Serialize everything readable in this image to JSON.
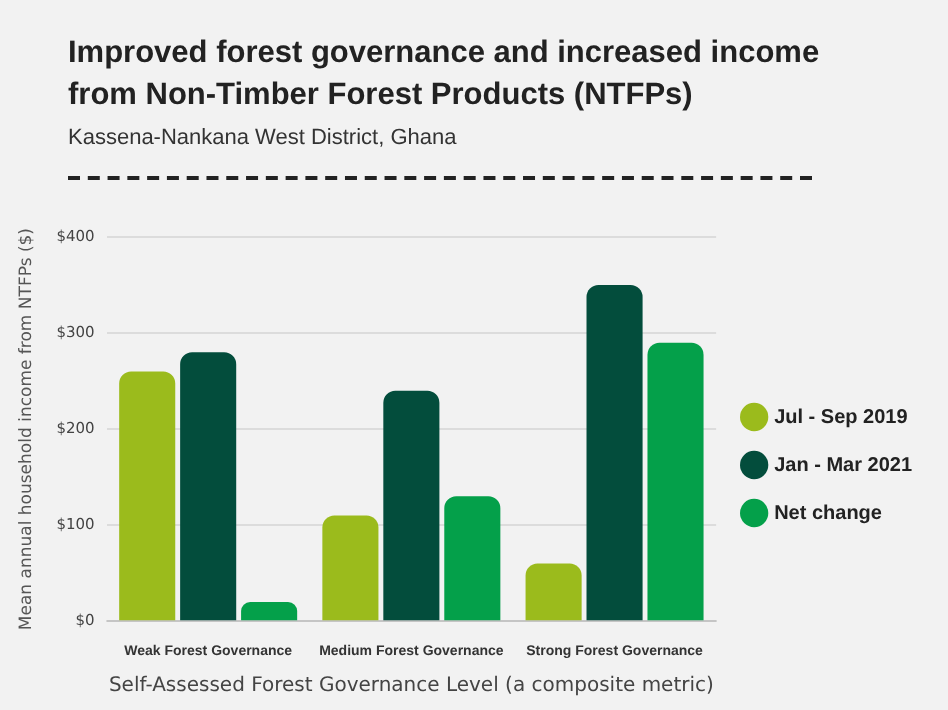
{
  "chart_data": {
    "type": "bar",
    "title": "Improved forest governance and increased income from Non-Timber Forest Products (NTFPs)",
    "subtitle": "Kassena-Nankana West District, Ghana",
    "xlabel": "Self-Assessed Forest Governance Level (a composite metric)",
    "ylabel": "Mean annual household income from NTFPs ($)",
    "categories": [
      "Weak Forest Governance",
      "Medium Forest Governance",
      "Strong Forest Governance"
    ],
    "series": [
      {
        "name": "Jul - Sep 2019",
        "color": "#9bbb1c",
        "values": [
          260,
          110,
          60
        ]
      },
      {
        "name": "Jan - Mar 2021",
        "color": "#034d3c",
        "values": [
          280,
          240,
          350
        ]
      },
      {
        "name": "Net change",
        "color": "#04a04a",
        "values": [
          20,
          130,
          290
        ]
      }
    ],
    "ylim": [
      0,
      400
    ],
    "yticks": [
      {
        "value": 0,
        "label": "$0"
      },
      {
        "value": 100,
        "label": "$100"
      },
      {
        "value": 200,
        "label": "$200"
      },
      {
        "value": 300,
        "label": "$300"
      },
      {
        "value": 400,
        "label": "$400"
      }
    ],
    "grid": "y",
    "legend": "right"
  }
}
